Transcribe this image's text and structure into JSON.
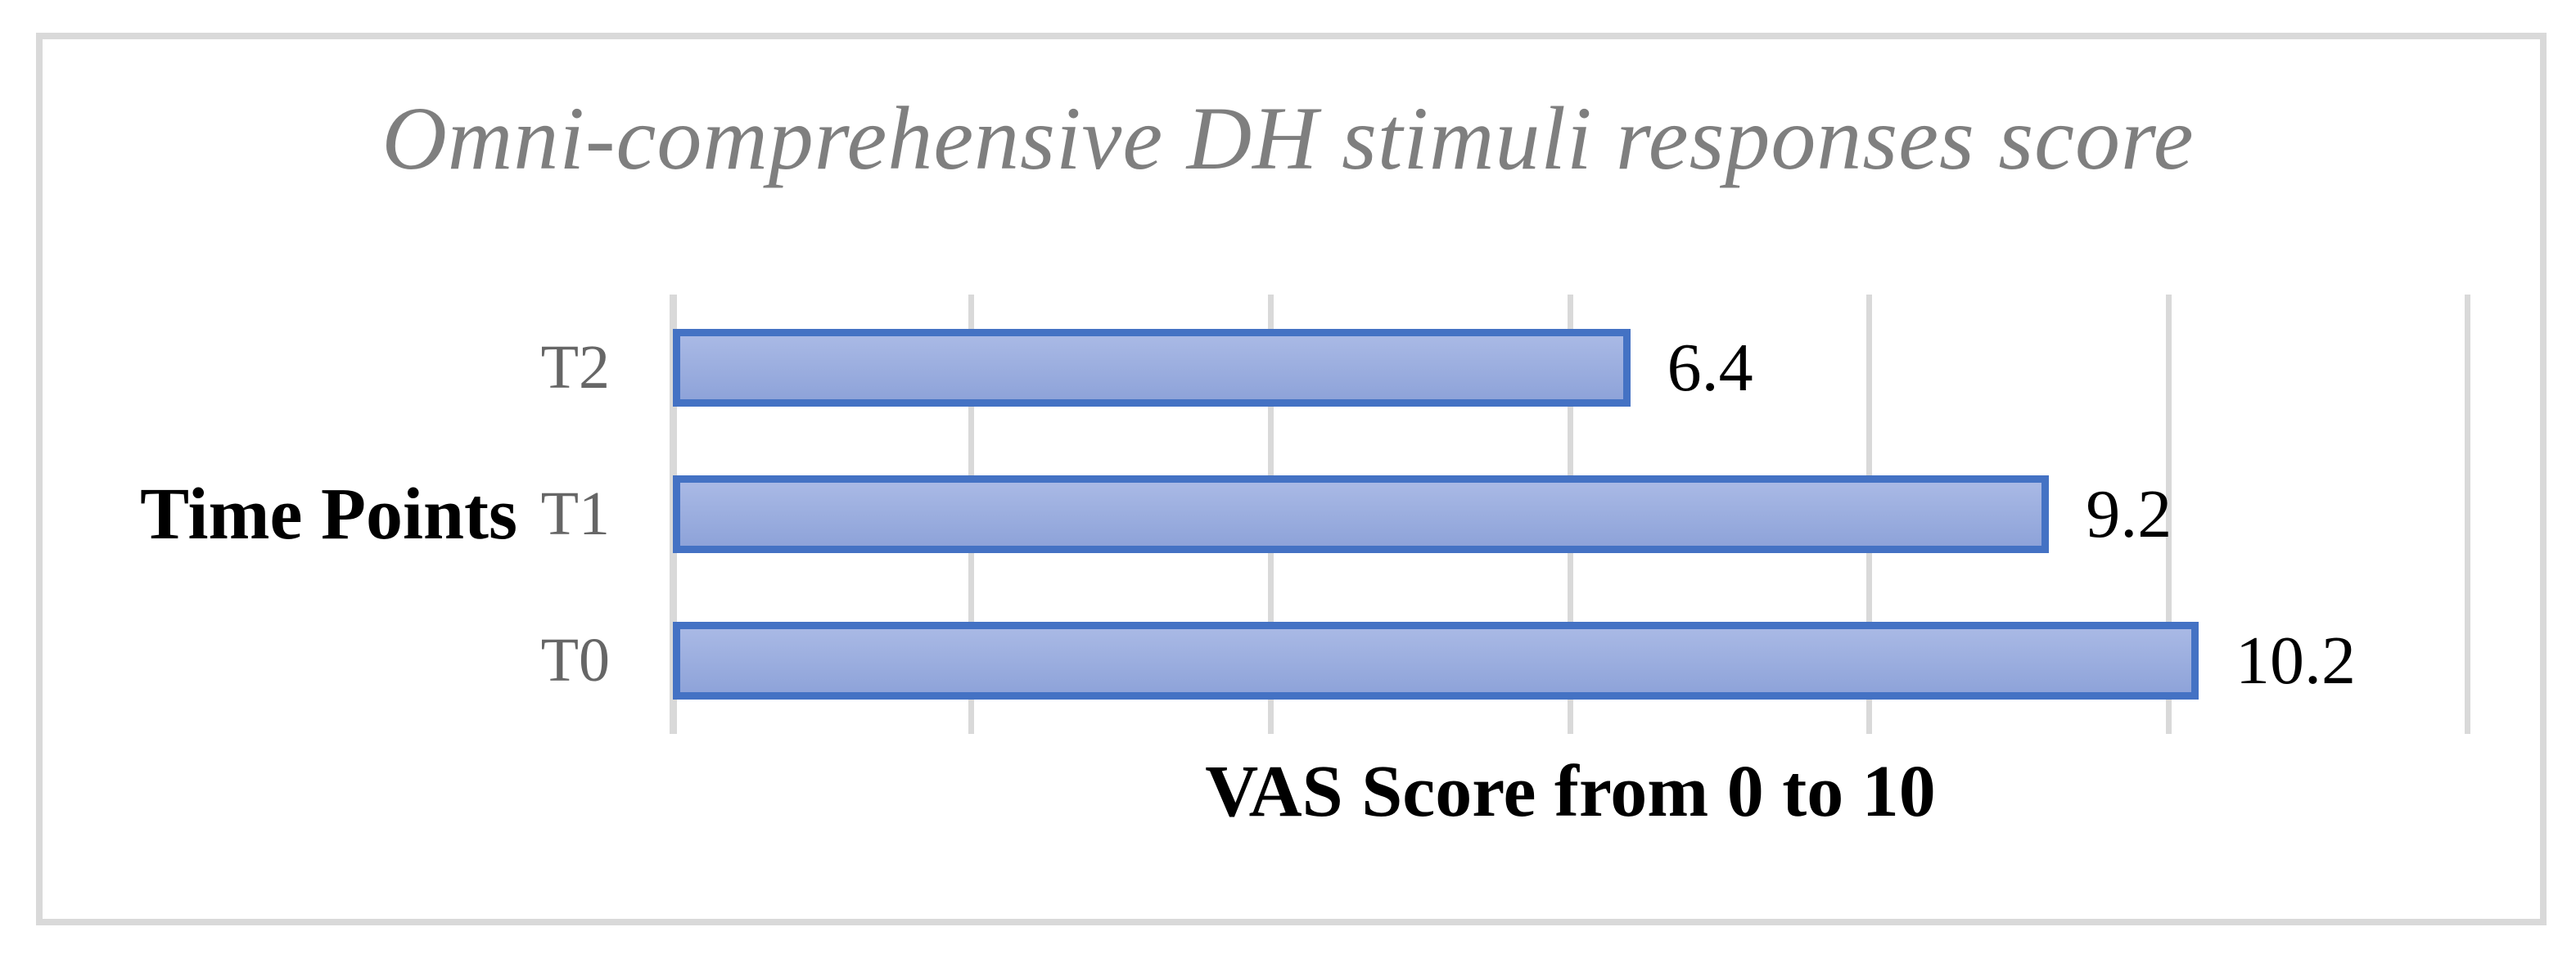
{
  "frame": {
    "border_color": "#D9D9D9"
  },
  "chart_data": {
    "type": "bar",
    "orientation": "horizontal",
    "title": "Omni-comprehensive DH stimuli responses score",
    "categories": [
      "T2",
      "T1",
      "T0"
    ],
    "values": [
      6.4,
      9.2,
      10.2
    ],
    "value_labels": [
      "6.4",
      "9.2",
      "10.2"
    ],
    "ylabel": "Time Points",
    "xlabel": "VAS Score from 0 to 10",
    "xlim": [
      0,
      12
    ],
    "gridline_step": 2,
    "grid": "vertical-gridlines",
    "tick_labels_shown": false,
    "legend": "none",
    "colors": {
      "bar_fill_top": "#A9B9E5",
      "bar_fill_bottom": "#8EA3D9",
      "bar_border": "#4472C4",
      "gridline": "#D9D9D9",
      "title_text": "#7F7F7F",
      "category_text": "#666666",
      "value_text": "#000000"
    }
  }
}
